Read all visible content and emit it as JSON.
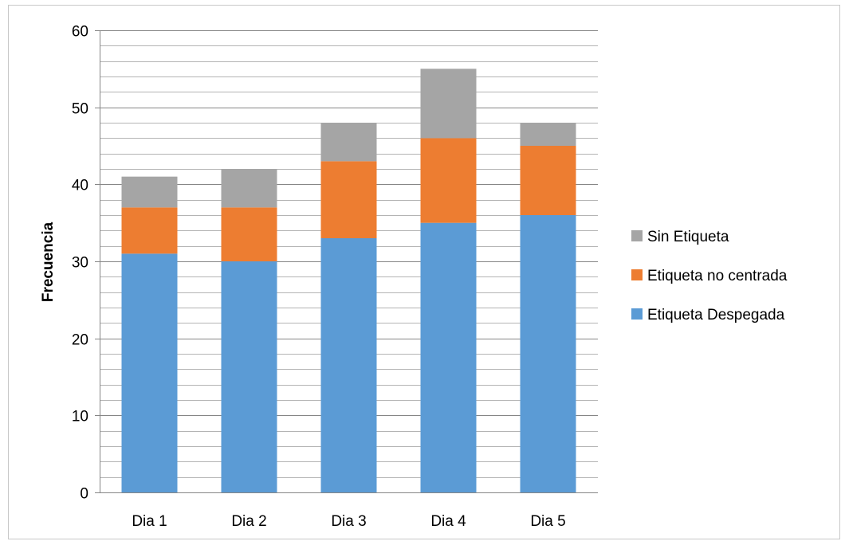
{
  "chart_data": {
    "type": "bar",
    "stacked": true,
    "title": "",
    "xlabel": "",
    "ylabel": "Frecuencia",
    "ylim": [
      0,
      60
    ],
    "y_major_step": 10,
    "y_minor_step": 2,
    "grid": true,
    "legend_position": "right",
    "categories": [
      "Dia 1",
      "Dia 2",
      "Dia 3",
      "Dia 4",
      "Dia 5"
    ],
    "series": [
      {
        "name": "Etiqueta Despegada",
        "color": "#5b9bd5",
        "values": [
          31,
          30,
          33,
          35,
          36
        ]
      },
      {
        "name": "Etiqueta no centrada",
        "color": "#ed7d31",
        "values": [
          6,
          7,
          10,
          11,
          9
        ]
      },
      {
        "name": "Sin Etiqueta",
        "color": "#a5a5a5",
        "values": [
          4,
          5,
          5,
          9,
          3
        ]
      }
    ]
  }
}
